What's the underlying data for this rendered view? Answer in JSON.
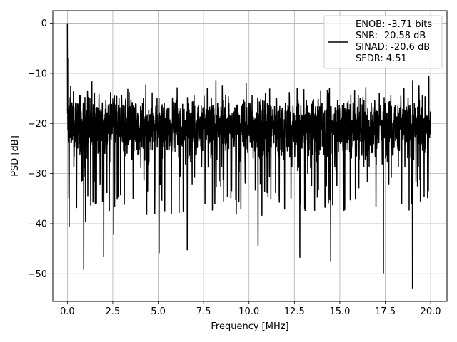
{
  "chart_data": {
    "type": "line",
    "title": "",
    "xlabel": "Frequency [MHz]",
    "ylabel": "PSD [dB]",
    "xlim": [
      -0.8,
      20.9
    ],
    "ylim": [
      -55.5,
      2.5
    ],
    "x_ticks": [
      0.0,
      2.5,
      5.0,
      7.5,
      10.0,
      12.5,
      15.0,
      17.5,
      20.0
    ],
    "x_tick_labels": [
      "0.0",
      "2.5",
      "5.0",
      "7.5",
      "10.0",
      "12.5",
      "15.0",
      "17.5",
      "20.0"
    ],
    "y_ticks": [
      0,
      -10,
      -20,
      -30,
      -40,
      -50
    ],
    "y_tick_labels": [
      "0",
      "−10",
      "−20",
      "−30",
      "−40",
      "−50"
    ],
    "grid": true,
    "legend_position": "top-right",
    "legend_lines": [
      "ENOB: -3.71 bits",
      "SNR: -20.58 dB",
      "SINAD: -20.6 dB",
      "SFDR: 4.51"
    ],
    "series": [
      {
        "color": "#000000",
        "x_range": [
          0.0,
          20.0
        ],
        "dc_peak": 0.0,
        "noise_floor_mean": -20.5,
        "noise_upper_envelope": -10.0,
        "notable_points": [
          {
            "x": 0.0,
            "y": 0.0
          },
          {
            "x": 0.02,
            "y": -7.0
          },
          {
            "x": 0.1,
            "y": -40.7
          },
          {
            "x": 0.18,
            "y": -12.5
          },
          {
            "x": 0.9,
            "y": -49.2
          },
          {
            "x": 1.0,
            "y": -39.6
          },
          {
            "x": 2.0,
            "y": -46.6
          },
          {
            "x": 2.55,
            "y": -42.2
          },
          {
            "x": 5.05,
            "y": -45.9
          },
          {
            "x": 6.6,
            "y": -45.3
          },
          {
            "x": 9.3,
            "y": -38.2
          },
          {
            "x": 10.5,
            "y": -44.4
          },
          {
            "x": 12.8,
            "y": -46.8
          },
          {
            "x": 14.5,
            "y": -47.6
          },
          {
            "x": 17.4,
            "y": -49.9
          },
          {
            "x": 19.0,
            "y": -52.9
          },
          {
            "x": 19.02,
            "y": -50.5
          },
          {
            "x": 19.9,
            "y": -10.5
          }
        ]
      }
    ]
  }
}
